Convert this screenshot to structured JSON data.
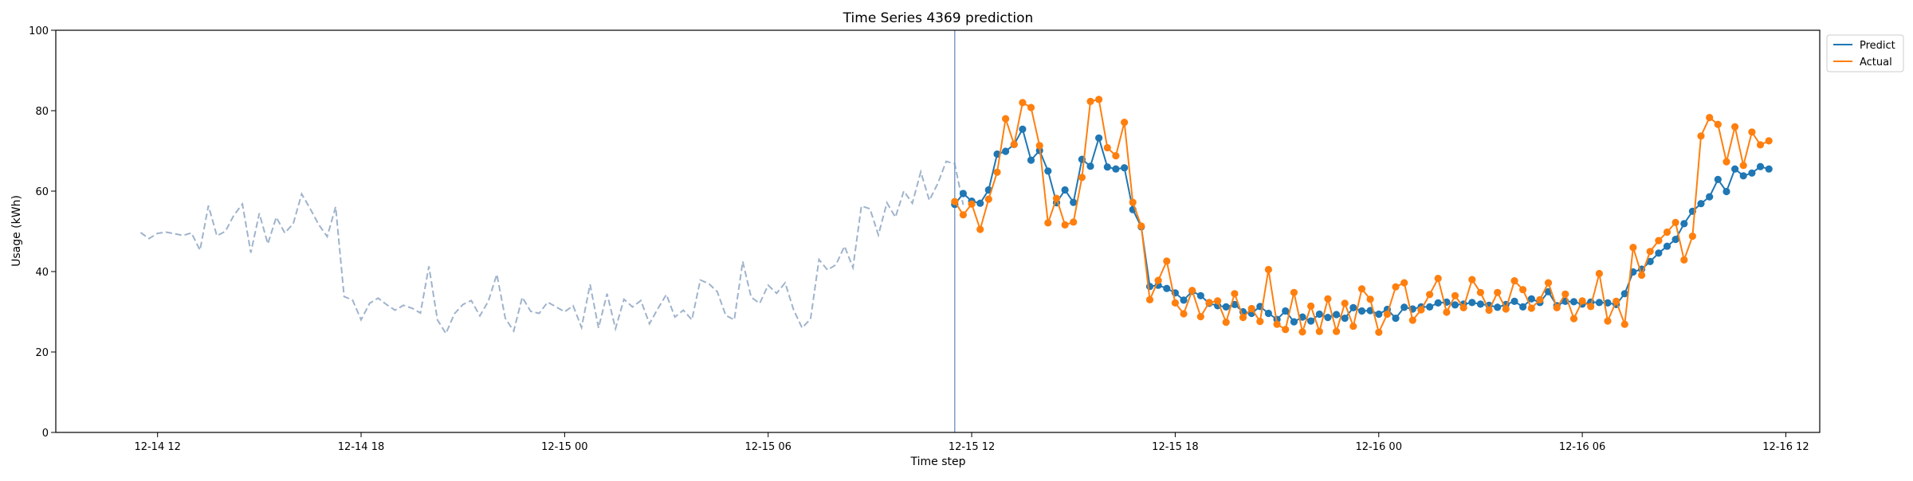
{
  "chart_data": {
    "type": "line",
    "title": "Time Series 4369 prediction",
    "xlabel": "Time step",
    "ylabel": "Usage (kWh)",
    "ylim": [
      0,
      100
    ],
    "yticks": [
      0,
      20,
      40,
      60,
      80,
      100
    ],
    "x_unit": "hours",
    "xlim": [
      "12-14 09:00",
      "12-16 13:00"
    ],
    "xticks": [
      "12-14 12",
      "12-14 18",
      "12-15 00",
      "12-15 06",
      "12-15 12",
      "12-15 18",
      "12-16 00",
      "12-16 06",
      "12-16 12"
    ],
    "forecast_start": "12-15 11:30",
    "grid": false,
    "legend_position": "top-right",
    "legend": [
      "Predict",
      "Actual"
    ],
    "colors": {
      "predict": "#1f77b4",
      "actual": "#ff7f0e",
      "history": "#9fb3cc",
      "divider": "#7f9cc9"
    },
    "history": {
      "start": "12-14 11:30",
      "step_minutes": 15,
      "values": [
        49.7,
        48.2,
        49.5,
        49.8,
        49.4,
        49.0,
        49.6,
        45.3,
        56.4,
        48.9,
        50.0,
        54.0,
        56.8,
        44.7,
        54.5,
        46.9,
        53.5,
        49.6,
        51.9,
        59.3,
        55.6,
        51.7,
        48.7,
        56.1,
        33.8,
        32.9,
        28.0,
        32.1,
        33.4,
        31.8,
        30.4,
        31.6,
        30.9,
        29.7,
        41.3,
        28.0,
        24.6,
        29.5,
        31.8,
        32.8,
        29.0,
        32.6,
        39.3,
        28.4,
        25.2,
        33.6,
        30.1,
        29.6,
        32.4,
        31.2,
        30.0,
        31.5,
        26.1,
        36.8,
        26.0,
        34.5,
        25.8,
        33.1,
        31.2,
        32.8,
        27.0,
        30.8,
        34.3,
        28.7,
        30.4,
        28.0,
        37.9,
        37.0,
        35.0,
        29.1,
        28.0,
        42.5,
        33.6,
        32.1,
        36.6,
        34.6,
        37.2,
        30.5,
        26.0,
        28.2,
        43.0,
        40.4,
        41.7,
        46.3,
        41.0,
        56.3,
        55.6,
        49.1,
        57.1,
        53.5,
        60.0,
        57.0,
        64.8,
        57.7,
        61.9,
        67.4,
        66.8,
        56.6
      ]
    },
    "series": [
      {
        "name": "Predict",
        "start": "12-15 11:30",
        "step_minutes": 15,
        "values": [
          56.7,
          59.4,
          57.5,
          57.0,
          60.3,
          69.2,
          69.9,
          71.6,
          75.4,
          67.7,
          70.1,
          65.0,
          57.1,
          60.3,
          57.2,
          67.9,
          66.2,
          73.2,
          66.0,
          65.5,
          65.8,
          55.4,
          51.1,
          36.3,
          36.6,
          35.8,
          34.7,
          32.9,
          35.1,
          34.0,
          32.1,
          31.5,
          31.2,
          31.8,
          30.0,
          29.6,
          31.3,
          29.6,
          28.1,
          30.2,
          27.5,
          28.7,
          27.7,
          29.4,
          28.6,
          29.3,
          28.4,
          31.0,
          30.2,
          30.3,
          29.4,
          30.6,
          28.4,
          31.1,
          30.7,
          31.2,
          31.2,
          32.2,
          32.4,
          31.7,
          31.9,
          32.3,
          31.9,
          31.6,
          31.1,
          31.8,
          32.6,
          31.2,
          33.2,
          32.3,
          35.0,
          31.5,
          32.6,
          32.5,
          31.9,
          32.4,
          32.3,
          32.2,
          31.8,
          34.5,
          39.9,
          40.6,
          42.5,
          44.6,
          46.3,
          48.0,
          51.9,
          55.0,
          56.9,
          58.6,
          62.9,
          59.9,
          65.5,
          63.8,
          64.5,
          66.1,
          65.5
        ]
      },
      {
        "name": "Actual",
        "start": "12-15 11:30",
        "step_minutes": 15,
        "values": [
          57.4,
          54.1,
          56.8,
          50.5,
          58.0,
          64.7,
          78.0,
          71.6,
          82.0,
          80.8,
          71.3,
          52.1,
          58.2,
          51.6,
          52.3,
          63.4,
          82.3,
          82.8,
          70.8,
          68.8,
          77.1,
          57.2,
          51.3,
          33.0,
          37.8,
          42.6,
          32.2,
          29.5,
          35.3,
          28.8,
          32.3,
          32.7,
          27.4,
          34.5,
          28.6,
          30.8,
          27.6,
          40.5,
          26.9,
          25.6,
          34.8,
          25.0,
          31.4,
          25.1,
          33.2,
          25.1,
          32.1,
          26.4,
          35.7,
          33.1,
          24.9,
          29.4,
          36.2,
          37.2,
          27.9,
          30.5,
          34.3,
          38.3,
          29.9,
          34.0,
          31.0,
          38.0,
          34.8,
          30.4,
          34.8,
          30.7,
          37.7,
          35.5,
          30.9,
          33.0,
          37.2,
          31.0,
          34.4,
          28.3,
          32.7,
          31.3,
          39.5,
          27.7,
          32.6,
          26.9,
          46.0,
          39.1,
          45.0,
          47.7,
          49.8,
          52.2,
          42.9,
          48.8,
          73.7,
          78.3,
          76.6,
          67.3,
          76.0,
          66.4,
          74.7,
          71.5,
          72.5
        ]
      }
    ]
  }
}
